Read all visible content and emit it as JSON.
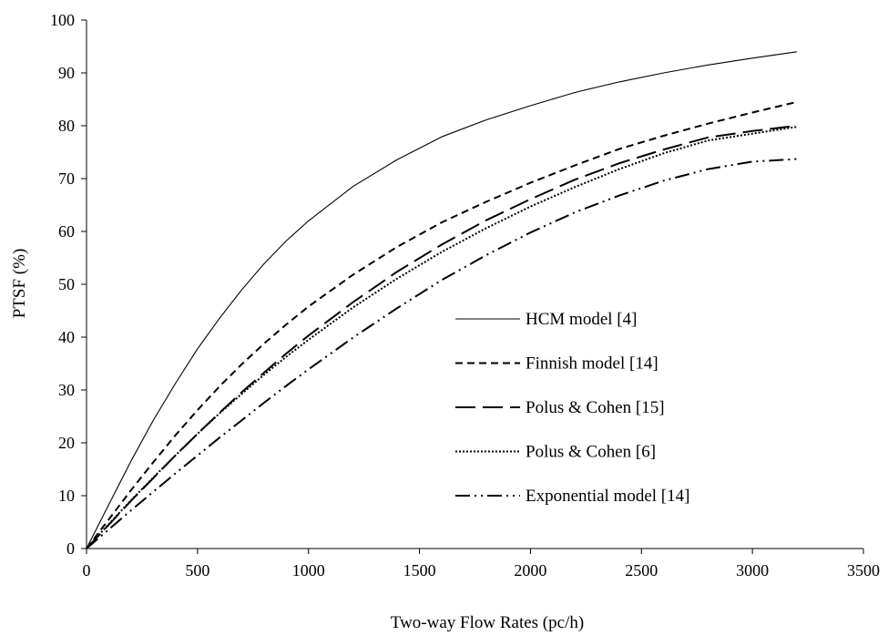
{
  "chart_data": {
    "type": "line",
    "title": "",
    "xlabel": "Two-way Flow Rates (pc/h)",
    "ylabel": "PTSF (%)",
    "xlim": [
      0,
      3500
    ],
    "ylim": [
      0,
      100
    ],
    "xticks": [
      0,
      500,
      1000,
      1500,
      2000,
      2500,
      3000,
      3500
    ],
    "yticks": [
      0,
      10,
      20,
      30,
      40,
      50,
      60,
      70,
      80,
      90,
      100
    ],
    "grid": false,
    "legend_position": "center-right",
    "x": [
      0,
      100,
      200,
      300,
      400,
      500,
      600,
      700,
      800,
      900,
      1000,
      1200,
      1400,
      1600,
      1800,
      2000,
      2200,
      2400,
      2600,
      2800,
      3000,
      3200
    ],
    "series": [
      {
        "name": "HCM model [4]",
        "dash": "solid",
        "color": "#000000",
        "values": [
          0,
          8.3,
          16.5,
          24.2,
          31.2,
          37.8,
          43.6,
          49.0,
          53.9,
          58.2,
          62.0,
          68.5,
          73.6,
          77.9,
          81.1,
          83.8,
          86.3,
          88.3,
          90.0,
          91.5,
          92.8,
          94.0
        ]
      },
      {
        "name": "Finnish model [14]",
        "dash": "dashed",
        "color": "#000000",
        "values": [
          0,
          5.5,
          11.0,
          16.3,
          21.4,
          26.2,
          30.7,
          34.9,
          38.8,
          42.4,
          45.8,
          51.8,
          57.1,
          61.7,
          65.6,
          69.2,
          72.5,
          75.6,
          78.1,
          80.4,
          82.5,
          84.5
        ]
      },
      {
        "name": "Polus & Cohen [15]",
        "dash": "long-dash",
        "color": "#000000",
        "values": [
          0,
          4.5,
          9.0,
          13.3,
          17.6,
          21.7,
          25.7,
          29.6,
          33.3,
          36.9,
          40.3,
          46.6,
          52.4,
          57.5,
          62.1,
          66.1,
          69.8,
          72.9,
          75.5,
          77.8,
          79.0,
          80.0
        ]
      },
      {
        "name": "Polus & Cohen [6]",
        "dash": "dotted",
        "color": "#000000",
        "values": [
          0,
          4.6,
          9.1,
          13.4,
          17.6,
          21.7,
          25.6,
          29.3,
          32.9,
          36.3,
          39.5,
          45.6,
          51.1,
          56.1,
          60.6,
          64.7,
          68.4,
          71.8,
          74.8,
          77.2,
          78.5,
          79.8
        ]
      },
      {
        "name": "Exponential model [14]",
        "dash": "dash-dot-dot",
        "color": "#000000",
        "values": [
          0,
          3.6,
          7.2,
          10.7,
          14.2,
          17.6,
          21.0,
          24.3,
          27.6,
          30.8,
          33.9,
          39.9,
          45.5,
          50.8,
          55.5,
          59.8,
          63.6,
          66.8,
          69.6,
          71.8,
          73.2,
          73.7
        ]
      }
    ]
  }
}
